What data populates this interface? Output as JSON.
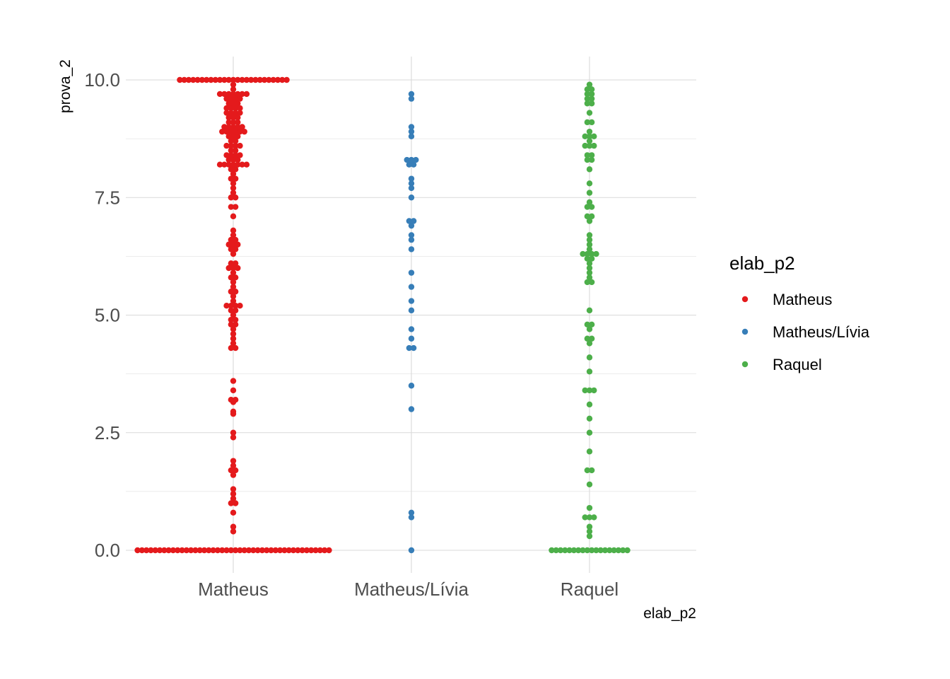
{
  "chart_data": {
    "type": "scatter",
    "subtype": "beeswarm",
    "title": "",
    "xlabel": "elab_p2",
    "ylabel": "prova_2",
    "categories": [
      "Matheus",
      "Matheus/Lívia",
      "Raquel"
    ],
    "y_ticks": [
      "0.0",
      "2.5",
      "5.0",
      "7.5",
      "10.0"
    ],
    "ylim": [
      -0.35,
      10.55
    ],
    "grid": true,
    "legend": {
      "title": "elab_p2",
      "position": "right",
      "entries": [
        "Matheus",
        "Matheus/Lívia",
        "Raquel"
      ]
    },
    "colors": {
      "Matheus": "#e41a1c",
      "Matheus/Lívia": "#377eb8",
      "Raquel": "#4daf4a"
    },
    "series": [
      {
        "name": "Matheus",
        "values": [
          10.0,
          10.0,
          10.0,
          10.0,
          10.0,
          10.0,
          10.0,
          10.0,
          10.0,
          10.0,
          10.0,
          10.0,
          10.0,
          10.0,
          10.0,
          10.0,
          10.0,
          10.0,
          10.0,
          10.0,
          10.0,
          10.0,
          10.0,
          10.0,
          10.0,
          9.9,
          9.8,
          9.7,
          9.7,
          9.7,
          9.7,
          9.7,
          9.7,
          9.7,
          9.6,
          9.6,
          9.6,
          9.6,
          9.5,
          9.5,
          9.5,
          9.4,
          9.4,
          9.4,
          9.4,
          9.3,
          9.3,
          9.3,
          9.3,
          9.2,
          9.2,
          9.2,
          9.1,
          9.1,
          9.1,
          9.0,
          9.0,
          9.0,
          9.0,
          9.0,
          8.9,
          8.9,
          8.9,
          8.9,
          8.9,
          8.9,
          8.8,
          8.8,
          8.8,
          8.7,
          8.7,
          8.6,
          8.6,
          8.6,
          8.6,
          8.5,
          8.5,
          8.4,
          8.4,
          8.4,
          8.4,
          8.3,
          8.3,
          8.3,
          8.2,
          8.2,
          8.2,
          8.2,
          8.2,
          8.2,
          8.2,
          8.1,
          8.1,
          8.0,
          7.9,
          7.9,
          7.8,
          7.7,
          7.6,
          7.5,
          7.5,
          7.3,
          7.3,
          7.1,
          6.8,
          6.7,
          6.6,
          6.6,
          6.5,
          6.5,
          6.5,
          6.4,
          6.4,
          6.3,
          6.1,
          6.1,
          6.0,
          6.0,
          6.0,
          5.9,
          5.8,
          5.8,
          5.7,
          5.6,
          5.5,
          5.5,
          5.4,
          5.3,
          5.2,
          5.2,
          5.2,
          5.2,
          5.1,
          5.1,
          5.0,
          4.9,
          4.9,
          4.8,
          4.8,
          4.7,
          4.6,
          4.5,
          4.4,
          4.3,
          4.3,
          3.6,
          3.4,
          3.2,
          3.2,
          3.15,
          2.95,
          2.9,
          2.5,
          2.4,
          1.9,
          1.8,
          1.7,
          1.7,
          1.6,
          1.3,
          1.2,
          1.1,
          1.0,
          1.0,
          0.8,
          0.5,
          0.4,
          0,
          0,
          0,
          0,
          0,
          0,
          0,
          0,
          0,
          0,
          0,
          0,
          0,
          0,
          0,
          0,
          0,
          0,
          0,
          0,
          0,
          0,
          0,
          0,
          0,
          0,
          0,
          0,
          0,
          0,
          0,
          0,
          0,
          0,
          0,
          0,
          0,
          0,
          0,
          0,
          0,
          0,
          0,
          0
        ]
      },
      {
        "name": "Matheus/Lívia",
        "values": [
          9.7,
          9.6,
          9.0,
          8.9,
          8.8,
          8.3,
          8.3,
          8.3,
          8.2,
          8.2,
          7.9,
          7.8,
          7.7,
          7.5,
          7.0,
          7.0,
          6.9,
          6.7,
          6.6,
          6.4,
          5.9,
          5.6,
          5.3,
          5.1,
          4.7,
          4.5,
          4.3,
          4.3,
          3.5,
          3.0,
          0.8,
          0.7,
          0.0
        ]
      },
      {
        "name": "Raquel",
        "values": [
          9.9,
          9.8,
          9.8,
          9.7,
          9.7,
          9.6,
          9.6,
          9.5,
          9.5,
          9.3,
          9.1,
          9.1,
          8.9,
          8.8,
          8.8,
          8.8,
          8.7,
          8.6,
          8.6,
          8.6,
          8.4,
          8.4,
          8.3,
          8.3,
          8.1,
          7.8,
          7.6,
          7.4,
          7.3,
          7.3,
          7.1,
          7.1,
          7.0,
          6.7,
          6.6,
          6.5,
          6.4,
          6.3,
          6.3,
          6.3,
          6.3,
          6.2,
          6.2,
          6.1,
          6.0,
          5.9,
          5.8,
          5.7,
          5.7,
          5.1,
          4.8,
          4.8,
          4.7,
          4.5,
          4.5,
          4.4,
          4.1,
          3.8,
          3.4,
          3.4,
          3.4,
          3.1,
          2.8,
          2.5,
          2.1,
          1.7,
          1.7,
          1.4,
          0.9,
          0.7,
          0.7,
          0.7,
          0.5,
          0.4,
          0.3,
          0,
          0,
          0,
          0,
          0,
          0,
          0,
          0,
          0,
          0,
          0,
          0,
          0,
          0,
          0,
          0,
          0,
          0
        ]
      }
    ]
  }
}
